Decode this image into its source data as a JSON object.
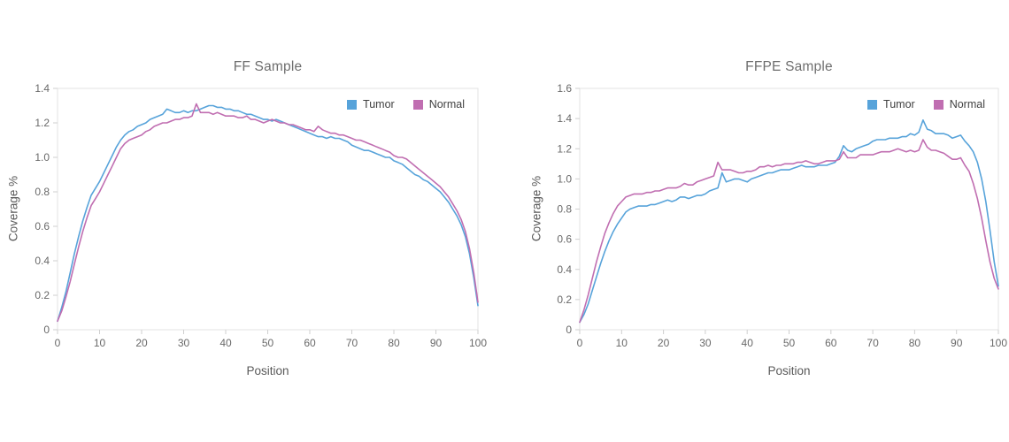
{
  "page": {
    "background": "#ffffff"
  },
  "chart_data": [
    {
      "type": "line",
      "title": "FF Sample",
      "xlabel": "Position",
      "ylabel": "Coverage %",
      "xlim": [
        0,
        100
      ],
      "ylim": [
        0,
        1.4
      ],
      "xticks": [
        "0",
        "10",
        "20",
        "30",
        "40",
        "50",
        "60",
        "70",
        "80",
        "90",
        "100"
      ],
      "yticks": [
        "0",
        "0.2",
        "0.4",
        "0.6",
        "0.8",
        "1.0",
        "1.2",
        "1.4"
      ],
      "grid": false,
      "legend_position": "top-right",
      "x": [
        0,
        1,
        2,
        3,
        4,
        5,
        6,
        7,
        8,
        9,
        10,
        11,
        12,
        13,
        14,
        15,
        16,
        17,
        18,
        19,
        20,
        21,
        22,
        23,
        24,
        25,
        26,
        27,
        28,
        29,
        30,
        31,
        32,
        33,
        34,
        35,
        36,
        37,
        38,
        39,
        40,
        41,
        42,
        43,
        44,
        45,
        46,
        47,
        48,
        49,
        50,
        51,
        52,
        53,
        54,
        55,
        56,
        57,
        58,
        59,
        60,
        61,
        62,
        63,
        64,
        65,
        66,
        67,
        68,
        69,
        70,
        71,
        72,
        73,
        74,
        75,
        76,
        77,
        78,
        79,
        80,
        81,
        82,
        83,
        84,
        85,
        86,
        87,
        88,
        89,
        90,
        91,
        92,
        93,
        94,
        95,
        96,
        97,
        98,
        99,
        100
      ],
      "series": [
        {
          "name": "Tumor",
          "color": "#57a3da",
          "values": [
            0.05,
            0.13,
            0.22,
            0.33,
            0.44,
            0.54,
            0.63,
            0.71,
            0.78,
            0.82,
            0.86,
            0.91,
            0.96,
            1.01,
            1.06,
            1.1,
            1.13,
            1.15,
            1.16,
            1.18,
            1.19,
            1.2,
            1.22,
            1.23,
            1.24,
            1.25,
            1.28,
            1.27,
            1.26,
            1.26,
            1.27,
            1.26,
            1.27,
            1.27,
            1.28,
            1.29,
            1.3,
            1.3,
            1.29,
            1.29,
            1.28,
            1.28,
            1.27,
            1.27,
            1.26,
            1.25,
            1.25,
            1.24,
            1.23,
            1.22,
            1.22,
            1.21,
            1.22,
            1.21,
            1.2,
            1.19,
            1.18,
            1.17,
            1.16,
            1.15,
            1.14,
            1.13,
            1.12,
            1.12,
            1.11,
            1.12,
            1.11,
            1.11,
            1.1,
            1.09,
            1.07,
            1.06,
            1.05,
            1.04,
            1.04,
            1.03,
            1.02,
            1.01,
            1.0,
            1.0,
            0.98,
            0.97,
            0.96,
            0.94,
            0.92,
            0.9,
            0.89,
            0.87,
            0.86,
            0.84,
            0.82,
            0.8,
            0.77,
            0.74,
            0.7,
            0.66,
            0.61,
            0.54,
            0.44,
            0.3,
            0.14
          ]
        },
        {
          "name": "Normal",
          "color": "#c06eb1",
          "values": [
            0.05,
            0.11,
            0.19,
            0.28,
            0.38,
            0.48,
            0.57,
            0.65,
            0.72,
            0.76,
            0.8,
            0.85,
            0.9,
            0.95,
            1.0,
            1.05,
            1.08,
            1.1,
            1.11,
            1.12,
            1.13,
            1.15,
            1.16,
            1.18,
            1.19,
            1.2,
            1.2,
            1.21,
            1.22,
            1.22,
            1.23,
            1.23,
            1.24,
            1.31,
            1.26,
            1.26,
            1.26,
            1.25,
            1.26,
            1.25,
            1.24,
            1.24,
            1.24,
            1.23,
            1.23,
            1.24,
            1.22,
            1.22,
            1.21,
            1.2,
            1.21,
            1.22,
            1.21,
            1.2,
            1.2,
            1.19,
            1.19,
            1.18,
            1.17,
            1.16,
            1.16,
            1.15,
            1.18,
            1.16,
            1.15,
            1.14,
            1.14,
            1.13,
            1.13,
            1.12,
            1.11,
            1.1,
            1.1,
            1.09,
            1.08,
            1.07,
            1.06,
            1.05,
            1.04,
            1.03,
            1.01,
            1.0,
            1.0,
            0.99,
            0.97,
            0.95,
            0.93,
            0.91,
            0.89,
            0.87,
            0.85,
            0.83,
            0.8,
            0.77,
            0.73,
            0.69,
            0.64,
            0.57,
            0.47,
            0.33,
            0.16
          ]
        }
      ]
    },
    {
      "type": "line",
      "title": "FFPE Sample",
      "xlabel": "Position",
      "ylabel": "Coverage %",
      "xlim": [
        0,
        100
      ],
      "ylim": [
        0,
        1.6
      ],
      "xticks": [
        "0",
        "10",
        "20",
        "30",
        "40",
        "50",
        "60",
        "70",
        "80",
        "90",
        "100"
      ],
      "yticks": [
        "0",
        "0.2",
        "0.4",
        "0.6",
        "0.8",
        "1.0",
        "1.2",
        "1.4",
        "1.6"
      ],
      "grid": false,
      "legend_position": "top-right",
      "x": [
        0,
        1,
        2,
        3,
        4,
        5,
        6,
        7,
        8,
        9,
        10,
        11,
        12,
        13,
        14,
        15,
        16,
        17,
        18,
        19,
        20,
        21,
        22,
        23,
        24,
        25,
        26,
        27,
        28,
        29,
        30,
        31,
        32,
        33,
        34,
        35,
        36,
        37,
        38,
        39,
        40,
        41,
        42,
        43,
        44,
        45,
        46,
        47,
        48,
        49,
        50,
        51,
        52,
        53,
        54,
        55,
        56,
        57,
        58,
        59,
        60,
        61,
        62,
        63,
        64,
        65,
        66,
        67,
        68,
        69,
        70,
        71,
        72,
        73,
        74,
        75,
        76,
        77,
        78,
        79,
        80,
        81,
        82,
        83,
        84,
        85,
        86,
        87,
        88,
        89,
        90,
        91,
        92,
        93,
        94,
        95,
        96,
        97,
        98,
        99,
        100
      ],
      "series": [
        {
          "name": "Tumor",
          "color": "#57a3da",
          "values": [
            0.05,
            0.1,
            0.17,
            0.26,
            0.35,
            0.44,
            0.52,
            0.59,
            0.65,
            0.7,
            0.74,
            0.78,
            0.8,
            0.81,
            0.82,
            0.82,
            0.82,
            0.83,
            0.83,
            0.84,
            0.85,
            0.86,
            0.85,
            0.86,
            0.88,
            0.88,
            0.87,
            0.88,
            0.89,
            0.89,
            0.9,
            0.92,
            0.93,
            0.94,
            1.04,
            0.98,
            0.99,
            1.0,
            1.0,
            0.99,
            0.98,
            1.0,
            1.01,
            1.02,
            1.03,
            1.04,
            1.04,
            1.05,
            1.06,
            1.06,
            1.06,
            1.07,
            1.08,
            1.09,
            1.08,
            1.08,
            1.08,
            1.09,
            1.09,
            1.09,
            1.1,
            1.11,
            1.15,
            1.22,
            1.19,
            1.18,
            1.2,
            1.21,
            1.22,
            1.23,
            1.25,
            1.26,
            1.26,
            1.26,
            1.27,
            1.27,
            1.27,
            1.28,
            1.28,
            1.3,
            1.29,
            1.31,
            1.39,
            1.33,
            1.32,
            1.3,
            1.3,
            1.3,
            1.29,
            1.27,
            1.28,
            1.29,
            1.25,
            1.22,
            1.18,
            1.11,
            1.0,
            0.85,
            0.66,
            0.45,
            0.29
          ]
        },
        {
          "name": "Normal",
          "color": "#c06eb1",
          "values": [
            0.05,
            0.13,
            0.23,
            0.34,
            0.45,
            0.55,
            0.64,
            0.71,
            0.77,
            0.82,
            0.85,
            0.88,
            0.89,
            0.9,
            0.9,
            0.9,
            0.91,
            0.91,
            0.92,
            0.92,
            0.93,
            0.94,
            0.94,
            0.94,
            0.95,
            0.97,
            0.96,
            0.96,
            0.98,
            0.99,
            1.0,
            1.01,
            1.02,
            1.11,
            1.06,
            1.06,
            1.06,
            1.05,
            1.04,
            1.04,
            1.05,
            1.05,
            1.06,
            1.08,
            1.08,
            1.09,
            1.08,
            1.09,
            1.09,
            1.1,
            1.1,
            1.1,
            1.11,
            1.11,
            1.12,
            1.11,
            1.1,
            1.1,
            1.11,
            1.12,
            1.12,
            1.12,
            1.13,
            1.18,
            1.14,
            1.14,
            1.14,
            1.16,
            1.16,
            1.16,
            1.16,
            1.17,
            1.18,
            1.18,
            1.18,
            1.19,
            1.2,
            1.19,
            1.18,
            1.19,
            1.18,
            1.19,
            1.26,
            1.21,
            1.19,
            1.19,
            1.18,
            1.17,
            1.15,
            1.13,
            1.13,
            1.14,
            1.09,
            1.05,
            0.97,
            0.87,
            0.74,
            0.59,
            0.45,
            0.34,
            0.27
          ]
        }
      ]
    }
  ],
  "style": {
    "plot_border_color": "#e3e3e3",
    "tick_color": "#cfcfcf",
    "tick_label_color": "#696969",
    "title_color": "#6e6e6e",
    "axis_label_color": "#595959",
    "legend_text_color": "#414141"
  }
}
